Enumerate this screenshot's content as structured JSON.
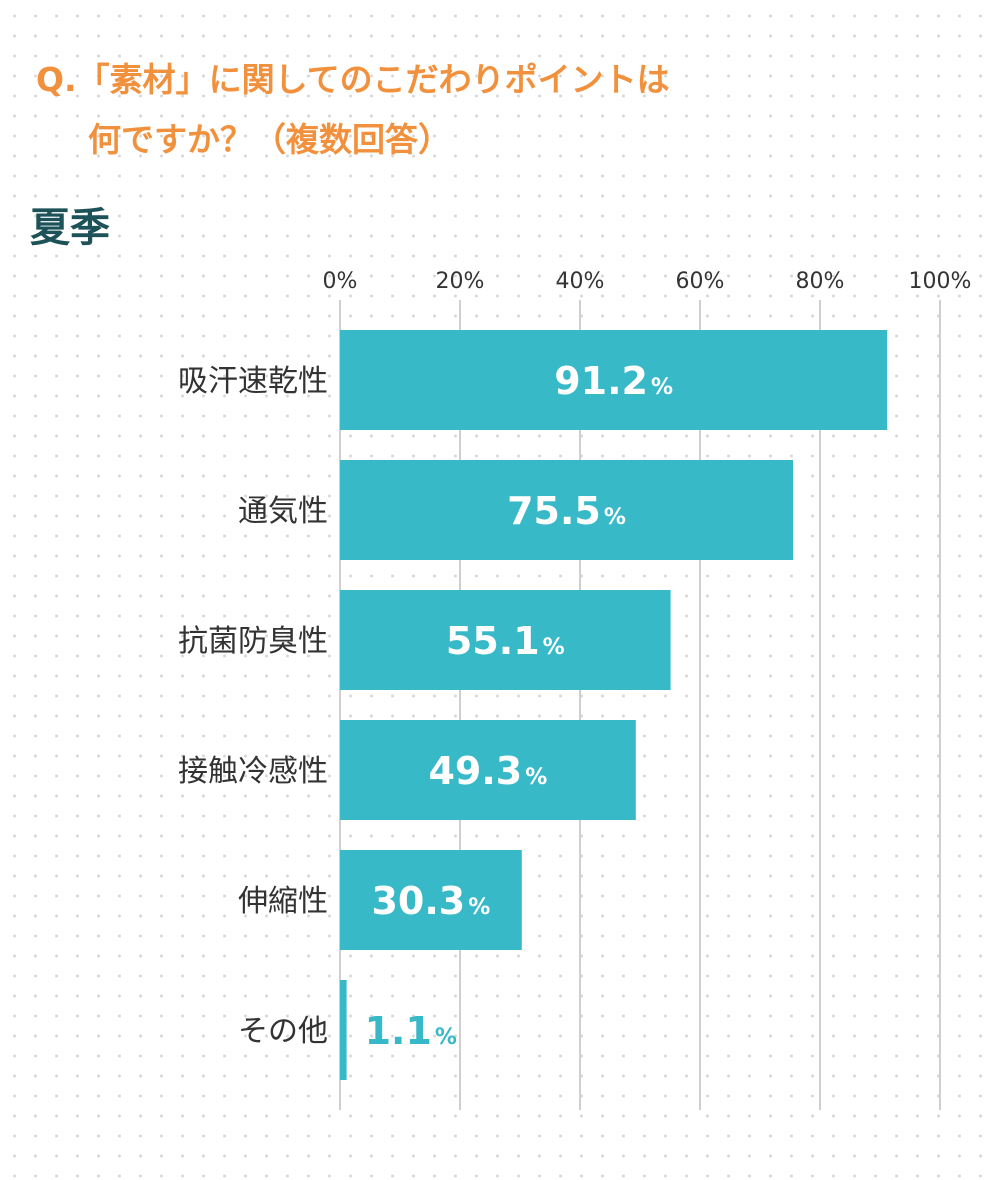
{
  "title": {
    "line1": "Q.「素材」に関してのこだわりポイントは",
    "line2": "何ですか？（複数回答）"
  },
  "season_label": "夏季",
  "colors": {
    "title": "#f2913d",
    "season": "#1c5258",
    "bar": "#37b9c8",
    "bar_value_text": "#ffffff",
    "outside_value_text": "#37b9c8",
    "gridline": "#cfcfcf"
  },
  "chart_data": {
    "type": "bar",
    "orientation": "horizontal",
    "categories": [
      "吸汗速乾性",
      "通気性",
      "抗菌防臭性",
      "接触冷感性",
      "伸縮性",
      "その他"
    ],
    "values": [
      91.2,
      75.5,
      55.1,
      49.3,
      30.3,
      1.1
    ],
    "value_unit": "%",
    "xlim": [
      0,
      100
    ],
    "x_ticks": [
      0,
      20,
      40,
      60,
      80,
      100
    ],
    "x_tick_labels": [
      "0%",
      "20%",
      "40%",
      "60%",
      "80%",
      "100%"
    ],
    "x_axis_position": "top",
    "grid": true,
    "legend": "none"
  }
}
